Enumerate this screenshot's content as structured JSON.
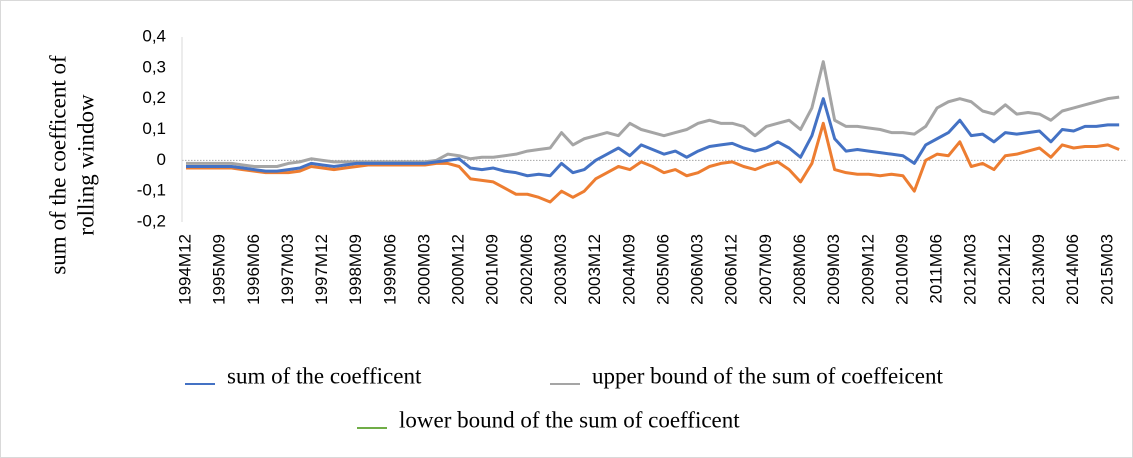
{
  "chart_data": {
    "type": "line",
    "ylabel": [
      "sum of the coefficent of",
      "rolling window"
    ],
    "categories": [
      "1994M12",
      null,
      null,
      "1995M09",
      null,
      null,
      "1996M06",
      null,
      null,
      "1997M03",
      null,
      null,
      "1997M12",
      null,
      null,
      "1998M09",
      null,
      null,
      "1999M06",
      null,
      null,
      "2000M03",
      null,
      null,
      "2000M12",
      null,
      null,
      "2001M09",
      null,
      null,
      "2002M06",
      null,
      null,
      "2003M03",
      null,
      null,
      "2003M12",
      null,
      null,
      "2004M09",
      null,
      null,
      "2005M06",
      null,
      null,
      "2006M03",
      null,
      null,
      "2006M12",
      null,
      null,
      "2007M09",
      null,
      null,
      "2008M06",
      null,
      null,
      "2009M03",
      null,
      null,
      "2009M12",
      null,
      null,
      "2010M09",
      null,
      null,
      "2011M06",
      null,
      null,
      "2012M03",
      null,
      null,
      "2012M12",
      null,
      null,
      "2013M09",
      null,
      null,
      "2014M06",
      null,
      null,
      "2015M03",
      null
    ],
    "series": [
      {
        "name": "sum of the coefficent",
        "color": "#4472c4",
        "values": [
          -0.02,
          -0.02,
          -0.02,
          -0.02,
          -0.02,
          -0.025,
          -0.03,
          -0.035,
          -0.035,
          -0.03,
          -0.025,
          -0.01,
          -0.015,
          -0.02,
          -0.015,
          -0.01,
          -0.01,
          -0.01,
          -0.01,
          -0.01,
          -0.01,
          -0.01,
          -0.005,
          0,
          0.005,
          -0.025,
          -0.03,
          -0.025,
          -0.035,
          -0.04,
          -0.05,
          -0.045,
          -0.05,
          -0.01,
          -0.04,
          -0.03,
          0,
          0.02,
          0.04,
          0.015,
          0.05,
          0.035,
          0.02,
          0.03,
          0.01,
          0.03,
          0.045,
          0.05,
          0.055,
          0.04,
          0.03,
          0.04,
          0.06,
          0.04,
          0.01,
          0.08,
          0.2,
          0.07,
          0.03,
          0.035,
          0.03,
          0.025,
          0.02,
          0.015,
          -0.01,
          0.05,
          0.07,
          0.09,
          0.13,
          0.08,
          0.085,
          0.06,
          0.09,
          0.085,
          0.09,
          0.095,
          0.06,
          0.1,
          0.095,
          0.11,
          0.11,
          0.115,
          0.115
        ]
      },
      {
        "name": "upper bound of the sum of coeffeicent",
        "color": "#a5a5a5",
        "values": [
          -0.01,
          -0.01,
          -0.01,
          -0.01,
          -0.01,
          -0.015,
          -0.02,
          -0.02,
          -0.02,
          -0.01,
          -0.005,
          0.005,
          0,
          -0.005,
          -0.005,
          -0.005,
          -0.005,
          -0.005,
          -0.005,
          -0.005,
          -0.005,
          -0.005,
          0,
          0.02,
          0.015,
          0.005,
          0.01,
          0.01,
          0.015,
          0.02,
          0.03,
          0.035,
          0.04,
          0.09,
          0.05,
          0.07,
          0.08,
          0.09,
          0.08,
          0.12,
          0.1,
          0.09,
          0.08,
          0.09,
          0.1,
          0.12,
          0.13,
          0.12,
          0.12,
          0.11,
          0.08,
          0.11,
          0.12,
          0.13,
          0.1,
          0.17,
          0.32,
          0.13,
          0.11,
          0.11,
          0.105,
          0.1,
          0.09,
          0.09,
          0.085,
          0.11,
          0.17,
          0.19,
          0.2,
          0.19,
          0.16,
          0.15,
          0.18,
          0.15,
          0.155,
          0.15,
          0.13,
          0.16,
          0.17,
          0.18,
          0.19,
          0.2,
          0.205
        ]
      },
      {
        "name": "lower bound of the sum of coefficent",
        "color": "#ed7d31",
        "legend_color": "#70ad47",
        "values": [
          -0.025,
          -0.025,
          -0.025,
          -0.025,
          -0.025,
          -0.03,
          -0.035,
          -0.04,
          -0.04,
          -0.04,
          -0.035,
          -0.02,
          -0.025,
          -0.03,
          -0.025,
          -0.02,
          -0.015,
          -0.015,
          -0.015,
          -0.015,
          -0.015,
          -0.015,
          -0.01,
          -0.01,
          -0.02,
          -0.06,
          -0.065,
          -0.07,
          -0.09,
          -0.11,
          -0.11,
          -0.12,
          -0.135,
          -0.1,
          -0.12,
          -0.1,
          -0.06,
          -0.04,
          -0.02,
          -0.03,
          -0.005,
          -0.02,
          -0.04,
          -0.03,
          -0.05,
          -0.04,
          -0.02,
          -0.01,
          -0.005,
          -0.02,
          -0.03,
          -0.015,
          -0.005,
          -0.03,
          -0.07,
          -0.01,
          0.12,
          -0.03,
          -0.04,
          -0.045,
          -0.045,
          -0.05,
          -0.045,
          -0.05,
          -0.1,
          0,
          0.02,
          0.015,
          0.06,
          -0.02,
          -0.01,
          -0.03,
          0.015,
          0.02,
          0.03,
          0.04,
          0.01,
          0.05,
          0.04,
          0.045,
          0.045,
          0.05,
          0.035
        ]
      }
    ],
    "ylim": [
      -0.2,
      0.4
    ],
    "yticks": [
      {
        "value": -0.2,
        "label": "-0,2"
      },
      {
        "value": -0.1,
        "label": "-0,1"
      },
      0,
      {
        "value": 0.1,
        "label": "0,1"
      },
      {
        "value": 0.2,
        "label": "0,2"
      },
      {
        "value": 0.3,
        "label": "0,3"
      },
      {
        "value": 0.4,
        "label": "0,4"
      }
    ],
    "zero_line": true
  }
}
